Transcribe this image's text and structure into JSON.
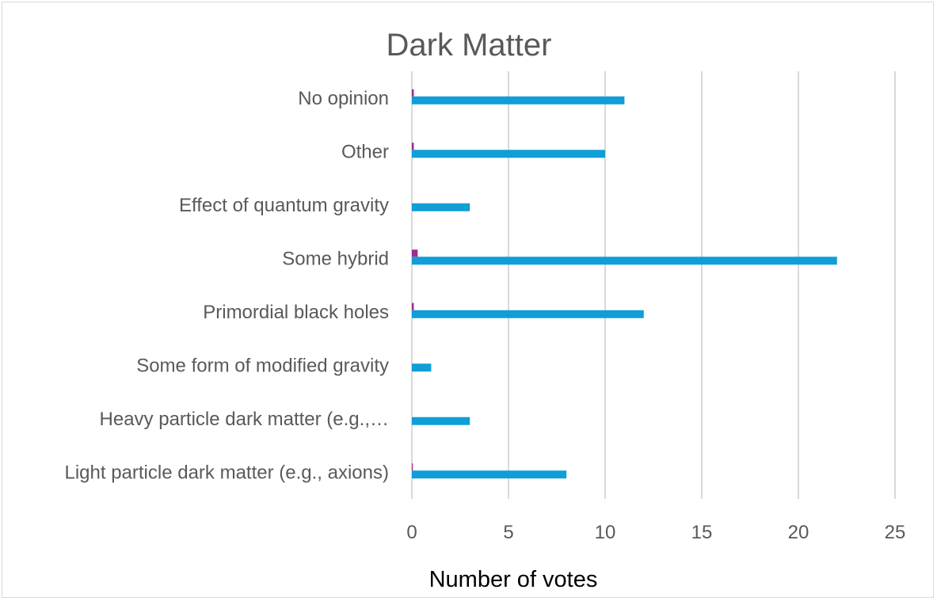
{
  "chart_data": {
    "type": "bar",
    "orientation": "horizontal",
    "title": "Dark Matter",
    "xlabel": "Number of votes",
    "ylabel": "",
    "xlim": [
      0,
      25
    ],
    "xticks": [
      "0",
      "5",
      "10",
      "15",
      "20",
      "25"
    ],
    "grid": true,
    "legend": "none",
    "categories": [
      "No opinion",
      "Other",
      "Effect of quantum gravity",
      "Some hybrid",
      "Primordial black holes",
      "Some form of modified gravity",
      "Heavy particle dark matter (e.g.,…",
      "Light particle dark matter (e.g., axions)"
    ],
    "series": [
      {
        "color": "#0f9ed5",
        "values": [
          11,
          10,
          3,
          22,
          12,
          1,
          3,
          8
        ]
      },
      {
        "color": "#a02b93",
        "values": [
          0.1,
          0.1,
          0,
          0.3,
          0.1,
          0,
          0,
          0.05
        ]
      }
    ]
  }
}
